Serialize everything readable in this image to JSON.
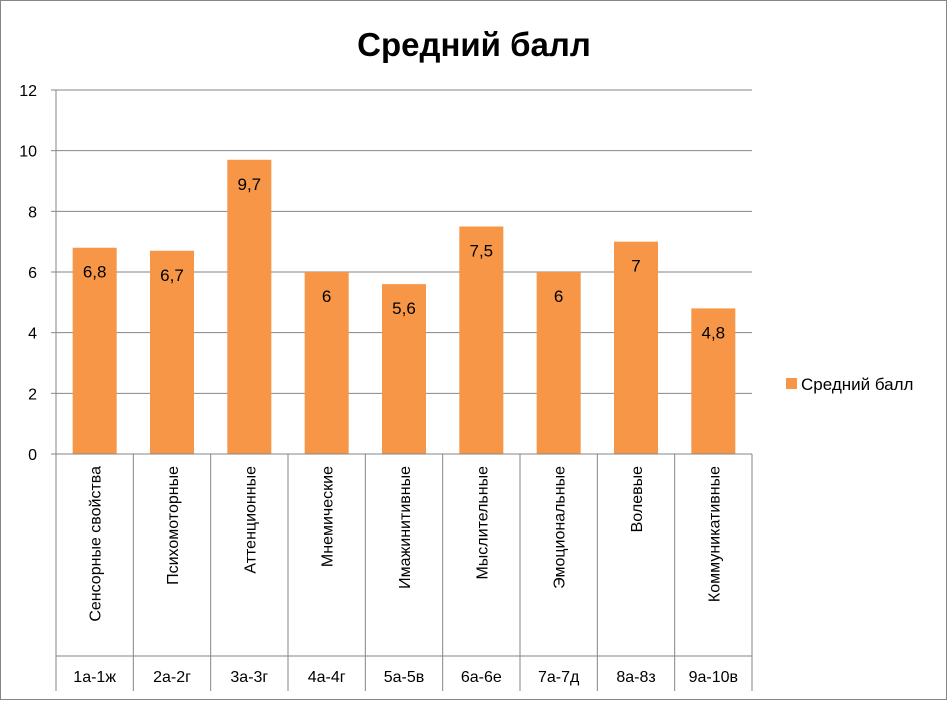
{
  "chart_data": {
    "type": "bar",
    "title": "Средний балл",
    "categories": [
      "Сенсорные свойства",
      "Психомоторные",
      "Аттенционные",
      "Мнемические",
      "Имажинитивные",
      "Мыслительные",
      "Эмоциональные",
      "Волевые",
      "Коммуникативные"
    ],
    "codes": [
      "1а-1ж",
      "2а-2г",
      "3а-3г",
      "4а-4г",
      "5а-5в",
      "6а-6е",
      "7а-7д",
      "8а-8з",
      "9а-10в"
    ],
    "series": [
      {
        "name": "Средний балл",
        "values": [
          6.8,
          6.7,
          9.7,
          6,
          5.6,
          7.5,
          6,
          7,
          4.8
        ],
        "labels": [
          "6,8",
          "6,7",
          "9,7",
          "6",
          "5,6",
          "7,5",
          "6",
          "7",
          "4,8"
        ],
        "color": "#F79646"
      }
    ],
    "ylim": [
      0,
      12
    ],
    "yticks": [
      0,
      2,
      4,
      6,
      8,
      10,
      12
    ],
    "grid": true,
    "legend": "right"
  }
}
